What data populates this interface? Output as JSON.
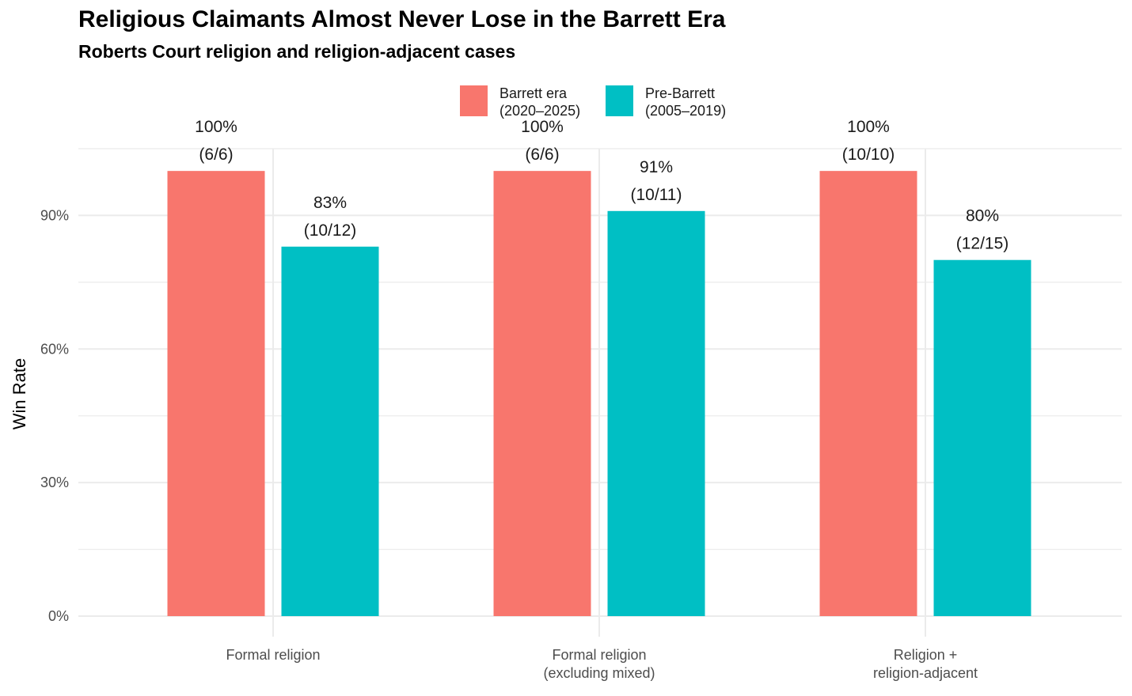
{
  "chart_data": {
    "type": "bar",
    "title": "Religious Claimants Almost Never Lose in the Barrett Era",
    "subtitle": "Roberts Court religion and religion-adjacent cases",
    "xlabel": "",
    "ylabel": "Win Rate",
    "ylim": [
      0,
      105
    ],
    "yticks": [
      0,
      30,
      60,
      90
    ],
    "ytick_labels": [
      "0%",
      "30%",
      "60%",
      "90%"
    ],
    "grid": true,
    "legend_position": "top",
    "categories": [
      [
        "Formal religion"
      ],
      [
        "Formal religion",
        "(excluding mixed)"
      ],
      [
        "Religion +",
        "religion-adjacent"
      ]
    ],
    "series": [
      {
        "name": [
          "Barrett era",
          "(2020–2025)"
        ],
        "color": "#F8766D",
        "values": [
          100,
          100,
          100
        ],
        "labels": [
          [
            "100%",
            "(6/6)"
          ],
          [
            "100%",
            "(6/6)"
          ],
          [
            "100%",
            "(10/10)"
          ]
        ]
      },
      {
        "name": [
          "Pre-Barrett",
          "(2005–2019)"
        ],
        "color": "#00BFC4",
        "values": [
          83,
          91,
          80
        ],
        "labels": [
          [
            "83%",
            "(10/12)"
          ],
          [
            "91%",
            "(10/11)"
          ],
          [
            "80%",
            "(12/15)"
          ]
        ]
      }
    ]
  }
}
